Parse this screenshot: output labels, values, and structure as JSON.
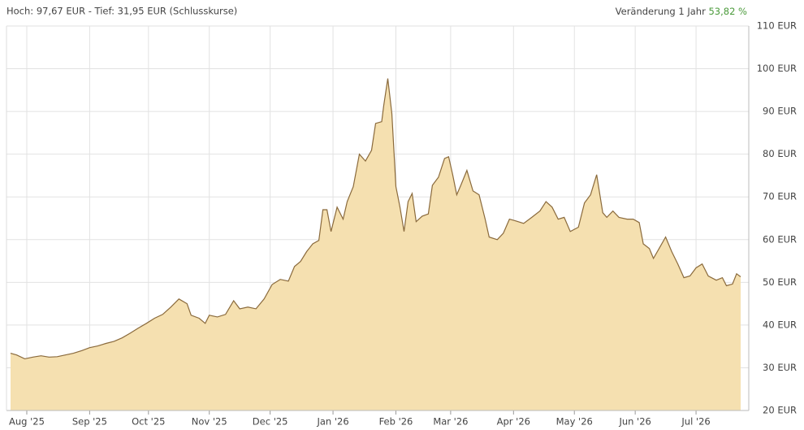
{
  "chart_data": {
    "type": "area",
    "title": "Hoch: 97,67 EUR - Tief: 31,95 EUR (Schlusskurse)",
    "change_label": "Veränderung 1 Jahr",
    "change_value": "53,82 %",
    "color": "#f5e0b0",
    "line_color": "#8a6a3c",
    "change_color": "#4a9a3a",
    "grid": true,
    "x": [
      2,
      5,
      9,
      13,
      17,
      21,
      25,
      29,
      33,
      37,
      41,
      45,
      49,
      53,
      57,
      61,
      65,
      69,
      73,
      77,
      81,
      85,
      89,
      91,
      95,
      98,
      100,
      104,
      108,
      112,
      115,
      119,
      123,
      127,
      131,
      135,
      139,
      142,
      145,
      148,
      151,
      154,
      156,
      158,
      160,
      163,
      166,
      168,
      171,
      174,
      177,
      180,
      182,
      185,
      186,
      188,
      190,
      192,
      194,
      196,
      198,
      200,
      202,
      205,
      208,
      210,
      213,
      216,
      218,
      220,
      222,
      224,
      227,
      230,
      233,
      236,
      238,
      242,
      245,
      248,
      251,
      255,
      259,
      263,
      266,
      269,
      272,
      275,
      278,
      282,
      285,
      288,
      291,
      294,
      296,
      299,
      302,
      306,
      309,
      312,
      314,
      317,
      319,
      322,
      325,
      328,
      331,
      334,
      337,
      340,
      343,
      346,
      350,
      353,
      355,
      358,
      360,
      362
    ],
    "values": [
      33.4,
      33.0,
      32.1,
      32.5,
      32.8,
      32.5,
      32.6,
      33.0,
      33.4,
      34.0,
      34.7,
      35.1,
      35.7,
      36.2,
      37.0,
      38.1,
      39.3,
      40.4,
      41.6,
      42.5,
      44.2,
      46.1,
      45.0,
      42.3,
      41.6,
      40.4,
      42.3,
      41.9,
      42.5,
      45.7,
      43.8,
      44.2,
      43.8,
      46.1,
      49.5,
      50.7,
      50.3,
      53.7,
      54.9,
      57.2,
      59.0,
      59.8,
      67.0,
      67.0,
      61.9,
      67.6,
      64.8,
      68.9,
      72.4,
      80.0,
      78.4,
      80.9,
      87.2,
      87.6,
      91.4,
      97.7,
      89.5,
      72.4,
      67.6,
      61.9,
      68.9,
      70.8,
      64.2,
      65.5,
      66.0,
      72.7,
      74.6,
      79.0,
      79.4,
      75.2,
      70.5,
      72.7,
      76.2,
      71.4,
      70.5,
      64.8,
      60.6,
      60.0,
      61.5,
      64.8,
      64.4,
      63.8,
      65.2,
      66.7,
      68.9,
      67.6,
      64.8,
      65.2,
      61.9,
      62.9,
      68.6,
      70.5,
      75.2,
      66.3,
      65.2,
      66.7,
      65.2,
      64.8,
      64.8,
      64.0,
      59.0,
      57.9,
      55.6,
      58.1,
      60.6,
      57.2,
      54.3,
      51.1,
      51.5,
      53.4,
      54.3,
      51.5,
      50.5,
      51.1,
      49.2,
      49.6,
      52.0,
      51.3
    ],
    "xlim": [
      0,
      366
    ],
    "xticks": [
      {
        "value": 10,
        "label": "Aug '25"
      },
      {
        "value": 41,
        "label": "Sep '25"
      },
      {
        "value": 70,
        "label": "Oct '25"
      },
      {
        "value": 100,
        "label": "Nov '25"
      },
      {
        "value": 130,
        "label": "Dec '25"
      },
      {
        "value": 161,
        "label": "Jan '26"
      },
      {
        "value": 192,
        "label": "Feb '26"
      },
      {
        "value": 219,
        "label": "Mar '26"
      },
      {
        "value": 250,
        "label": "Apr '26"
      },
      {
        "value": 280,
        "label": "May '26"
      },
      {
        "value": 310,
        "label": "Jun '26"
      },
      {
        "value": 340,
        "label": "Jul '26"
      }
    ],
    "ylim": [
      20,
      110
    ],
    "yticks": [
      {
        "value": 20,
        "label": "20 EUR"
      },
      {
        "value": 30,
        "label": "30 EUR"
      },
      {
        "value": 40,
        "label": "40 EUR"
      },
      {
        "value": 50,
        "label": "50 EUR"
      },
      {
        "value": 60,
        "label": "60 EUR"
      },
      {
        "value": 70,
        "label": "70 EUR"
      },
      {
        "value": 80,
        "label": "80 EUR"
      },
      {
        "value": 90,
        "label": "90 EUR"
      },
      {
        "value": 100,
        "label": "100 EUR"
      },
      {
        "value": 110,
        "label": "110 EUR"
      }
    ]
  }
}
